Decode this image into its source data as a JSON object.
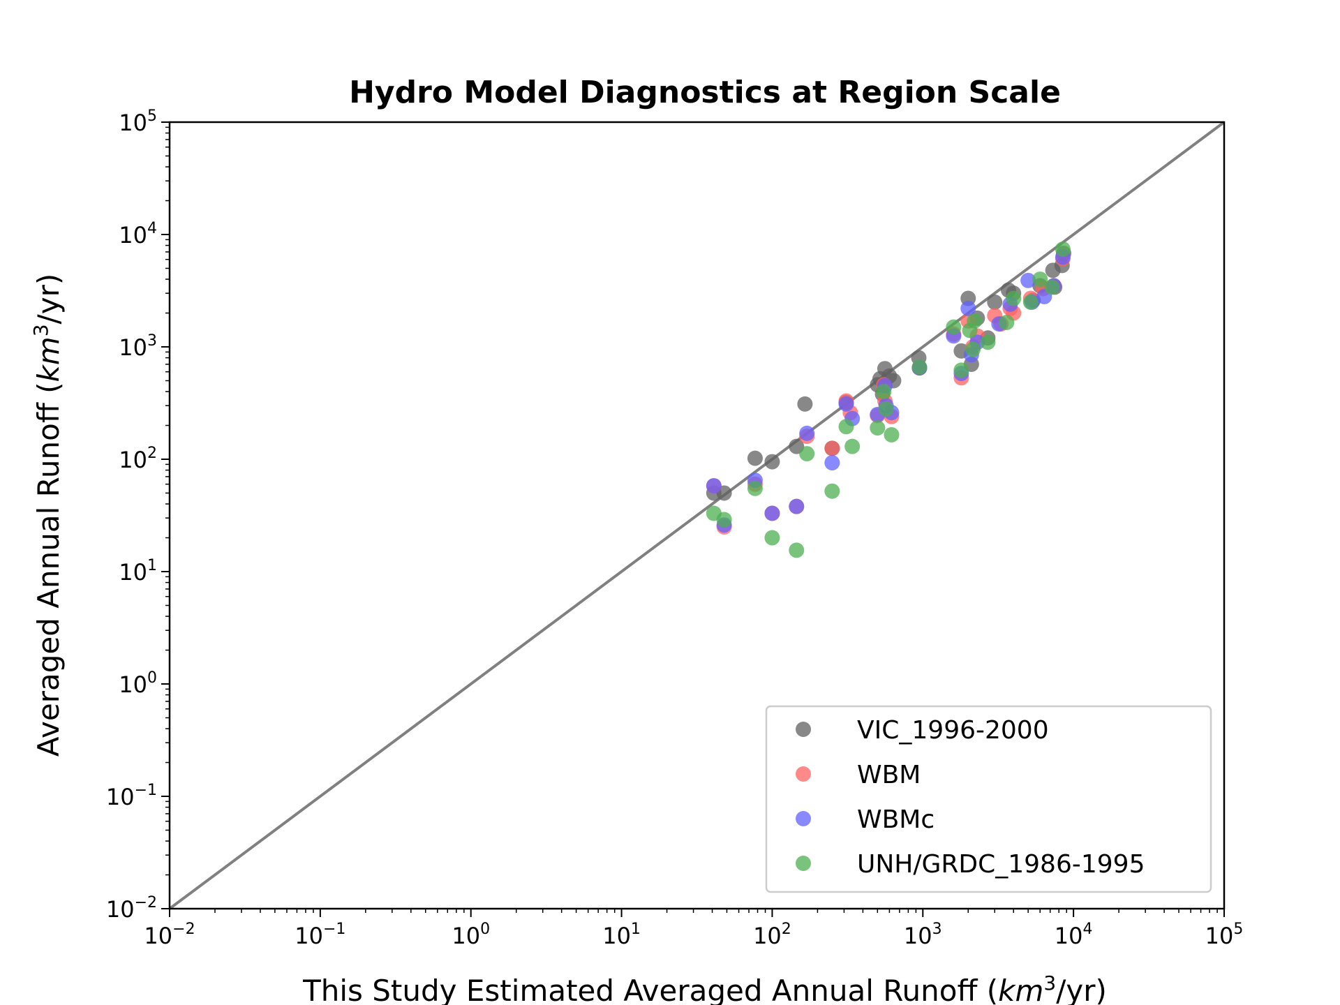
{
  "chart_data": {
    "type": "scatter",
    "title": "Hydro Model Diagnostics at Region Scale",
    "xlabel": "This Study Estimated Averaged Annual Runoff (km³/yr)",
    "xlabel_prefix": "This Study Estimated Averaged Annual Runoff (",
    "ylabel_prefix": "Averaged Annual Runoff (",
    "unit_km": "km",
    "unit_exp": "3",
    "unit_tail": "/yr)",
    "ylabel": "Averaged Annual Runoff (km³/yr)",
    "x_scale": "log",
    "y_scale": "log",
    "xlim": [
      0.01,
      100000
    ],
    "ylim": [
      0.01,
      100000
    ],
    "ticks": [
      {
        "base": "10",
        "exp": "−2",
        "value": 0.01
      },
      {
        "base": "10",
        "exp": "−1",
        "value": 0.1
      },
      {
        "base": "10",
        "exp": "0",
        "value": 1
      },
      {
        "base": "10",
        "exp": "1",
        "value": 10
      },
      {
        "base": "10",
        "exp": "2",
        "value": 100
      },
      {
        "base": "10",
        "exp": "3",
        "value": 1000
      },
      {
        "base": "10",
        "exp": "4",
        "value": 10000
      },
      {
        "base": "10",
        "exp": "5",
        "value": 100000
      }
    ],
    "reference_line": {
      "type": "1:1",
      "color": "#808080"
    },
    "grid": false,
    "legend_position": "lower-right",
    "series": [
      {
        "name": "VIC_1996-2000",
        "color": "#606060",
        "points": [
          [
            41,
            50
          ],
          [
            48,
            50
          ],
          [
            77,
            102
          ],
          [
            100,
            95
          ],
          [
            145,
            130
          ],
          [
            165,
            310
          ],
          [
            250,
            125
          ],
          [
            310,
            320
          ],
          [
            500,
            460
          ],
          [
            520,
            520
          ],
          [
            540,
            380
          ],
          [
            560,
            640
          ],
          [
            600,
            550
          ],
          [
            640,
            500
          ],
          [
            940,
            800
          ],
          [
            950,
            650
          ],
          [
            1800,
            920
          ],
          [
            2000,
            2700
          ],
          [
            2100,
            700
          ],
          [
            2300,
            1800
          ],
          [
            2700,
            1200
          ],
          [
            3000,
            2500
          ],
          [
            3700,
            3200
          ],
          [
            4000,
            3000
          ],
          [
            5400,
            2600
          ],
          [
            6000,
            3500
          ],
          [
            7300,
            4800
          ],
          [
            7500,
            3400
          ],
          [
            8400,
            5300
          ],
          [
            8600,
            6800
          ]
        ]
      },
      {
        "name": "WBM",
        "color": "#ff6060",
        "points": [
          [
            41,
            58
          ],
          [
            48,
            25
          ],
          [
            77,
            60
          ],
          [
            100,
            33
          ],
          [
            145,
            38
          ],
          [
            170,
            160
          ],
          [
            250,
            125
          ],
          [
            310,
            330
          ],
          [
            330,
            260
          ],
          [
            500,
            245
          ],
          [
            550,
            460
          ],
          [
            560,
            330
          ],
          [
            620,
            240
          ],
          [
            950,
            650
          ],
          [
            1600,
            1300
          ],
          [
            1800,
            530
          ],
          [
            2000,
            1700
          ],
          [
            2150,
            1000
          ],
          [
            2300,
            1250
          ],
          [
            3000,
            1900
          ],
          [
            3300,
            1600
          ],
          [
            3800,
            2200
          ],
          [
            4000,
            2000
          ],
          [
            5200,
            2700
          ],
          [
            6300,
            3300
          ],
          [
            7400,
            3500
          ],
          [
            8500,
            6100
          ]
        ]
      },
      {
        "name": "WBMc",
        "color": "#6060ff",
        "points": [
          [
            41,
            58
          ],
          [
            48,
            26
          ],
          [
            77,
            65
          ],
          [
            100,
            33
          ],
          [
            145,
            38
          ],
          [
            170,
            170
          ],
          [
            250,
            93
          ],
          [
            310,
            310
          ],
          [
            340,
            230
          ],
          [
            500,
            250
          ],
          [
            560,
            450
          ],
          [
            570,
            300
          ],
          [
            620,
            260
          ],
          [
            950,
            650
          ],
          [
            1600,
            1250
          ],
          [
            1800,
            580
          ],
          [
            2000,
            2200
          ],
          [
            2100,
            850
          ],
          [
            2300,
            1100
          ],
          [
            3200,
            1600
          ],
          [
            3800,
            2400
          ],
          [
            5000,
            3900
          ],
          [
            5300,
            2500
          ],
          [
            6400,
            2800
          ],
          [
            7400,
            3500
          ],
          [
            8500,
            6300
          ]
        ]
      },
      {
        "name": "UNH/GRDC_1986-1995",
        "color": "#4caf50",
        "points": [
          [
            41,
            33
          ],
          [
            48,
            29
          ],
          [
            77,
            55
          ],
          [
            100,
            20
          ],
          [
            145,
            15.5
          ],
          [
            170,
            112
          ],
          [
            250,
            52
          ],
          [
            310,
            195
          ],
          [
            340,
            130
          ],
          [
            500,
            190
          ],
          [
            550,
            400
          ],
          [
            570,
            280
          ],
          [
            620,
            165
          ],
          [
            950,
            660
          ],
          [
            1600,
            1500
          ],
          [
            1800,
            620
          ],
          [
            2050,
            1400
          ],
          [
            2150,
            950
          ],
          [
            2200,
            1700
          ],
          [
            2700,
            1100
          ],
          [
            3600,
            1650
          ],
          [
            4000,
            2700
          ],
          [
            5200,
            2500
          ],
          [
            6000,
            4000
          ],
          [
            7200,
            3400
          ],
          [
            8500,
            7400
          ]
        ]
      }
    ]
  }
}
